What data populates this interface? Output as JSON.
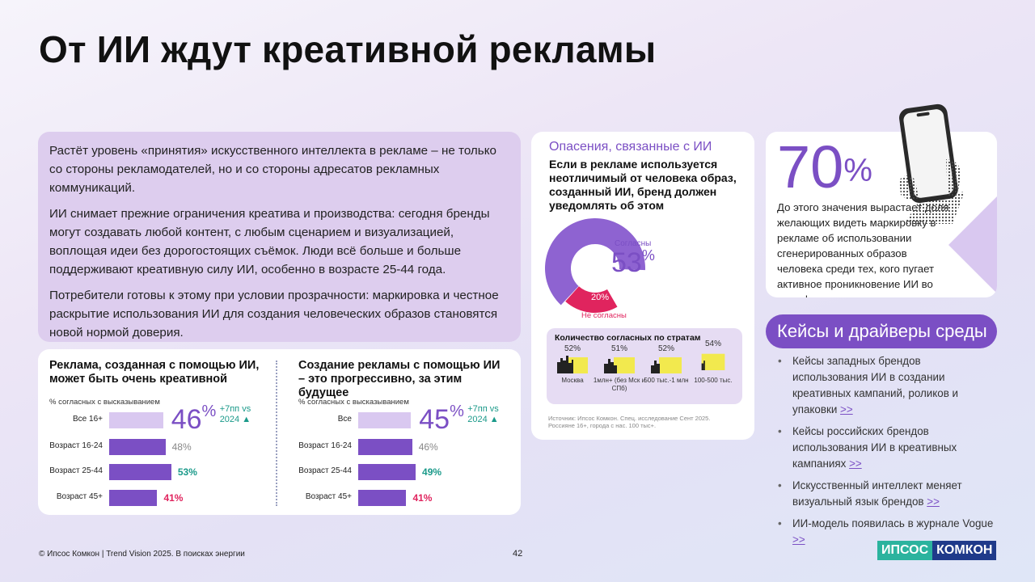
{
  "title": "От ИИ ждут креативной рекламы",
  "intro": [
    "Растёт уровень «принятия» искусственного интеллекта в рекламе – не только со стороны рекламодателей, но и со стороны адресатов рекламных коммуникаций.",
    "ИИ снимает прежние ограничения креатива и производства: сегодня бренды могут создавать любой контент, с любым сценарием и визуализацией, воплощая идеи без дорогостоящих съёмок. Люди всё больше и больше поддерживают креативную силу ИИ, особенно в возрасте 25-44 года.",
    "Потребители готовы к этому при условии прозрачности: маркировка и честное раскрытие использования ИИ для создания человеческих образов становятся новой нормой доверия."
  ],
  "colors": {
    "purple": "#7b4fc4",
    "light_purple": "#d9c8f0",
    "magenta": "#e0245e",
    "teal": "#1b9a8a",
    "yellow": "#f2e94e"
  },
  "chart_data": [
    {
      "type": "bar",
      "title": "Реклама, созданная с помощью ИИ, может быть очень креативной",
      "subtitle": "% согласных с высказыванием",
      "categories": [
        "Все 16+",
        "Возраст 16-24",
        "Возраст 25-44",
        "Возраст 45+"
      ],
      "values": [
        46,
        48,
        53,
        41
      ],
      "labels": [
        "46%",
        "48%",
        "53%",
        "41%"
      ],
      "annotation": "+7пп vs 2024"
    },
    {
      "type": "bar",
      "title": "Создание рекламы с помощью ИИ – это прогрессивно, за этим будущее",
      "subtitle": "% согласных с высказыванием",
      "categories": [
        "Все",
        "Возраст 16-24",
        "Возраст 25-44",
        "Возраст 45+"
      ],
      "values": [
        45,
        46,
        49,
        41
      ],
      "labels": [
        "45%",
        "46%",
        "49%",
        "41%"
      ],
      "annotation": "+7пп vs 2024"
    },
    {
      "type": "pie",
      "title": "Опасения, связанные с ИИ",
      "subtitle": "Если в рекламе используется неотличимый от человека образ, созданный ИИ, бренд должен уведомлять об этом",
      "categories": [
        "Согласны",
        "Не согласны"
      ],
      "values": [
        53,
        20
      ]
    },
    {
      "type": "table",
      "title": "Количество согласных по стратам",
      "categories": [
        "Москва",
        "1млн+ (без Мск и СПб)",
        "500 тыс.-1 млн",
        "100-500 тыс."
      ],
      "values": [
        52,
        51,
        52,
        54
      ]
    }
  ],
  "donut": {
    "agree_label": "Согласны",
    "agree_value": "53",
    "disagree_label": "Не согласны",
    "disagree_value": "20%"
  },
  "strata_labels": [
    "52%",
    "51%",
    "52%",
    "54%"
  ],
  "source": "Источник: Ипсос Комкон. Спец. исследование Сент 2025. Россияне 16+, города с нас. 100 тыс+.",
  "stat": {
    "value": "70",
    "text": "До этого значения вырастает доля желающих видеть маркировку в рекламе об использовании сгенерированных образов человека среди тех, кого пугает активное проникновение ИИ во все сферы жизни"
  },
  "cases_title": "Кейсы и драйверы среды",
  "cases": [
    {
      "text": "Кейсы западных брендов использования ИИ в создании креативных кампаний, роликов и упаковки",
      "link": ">>"
    },
    {
      "text": "Кейсы российских брендов использования ИИ в креативных кампаниях",
      "link": ">>"
    },
    {
      "text": "Искусственный интеллект меняет визуальный язык брендов",
      "link": ">>"
    },
    {
      "text": "ИИ-модель появилась в журнале Vogue",
      "link": ">>"
    }
  ],
  "footer": {
    "copyright": "© Ипсос Комкон | Trend Vision 2025. В поисках энергии",
    "page": "42",
    "logo_left": "ИПСОС",
    "logo_right": "КОМКОН"
  }
}
